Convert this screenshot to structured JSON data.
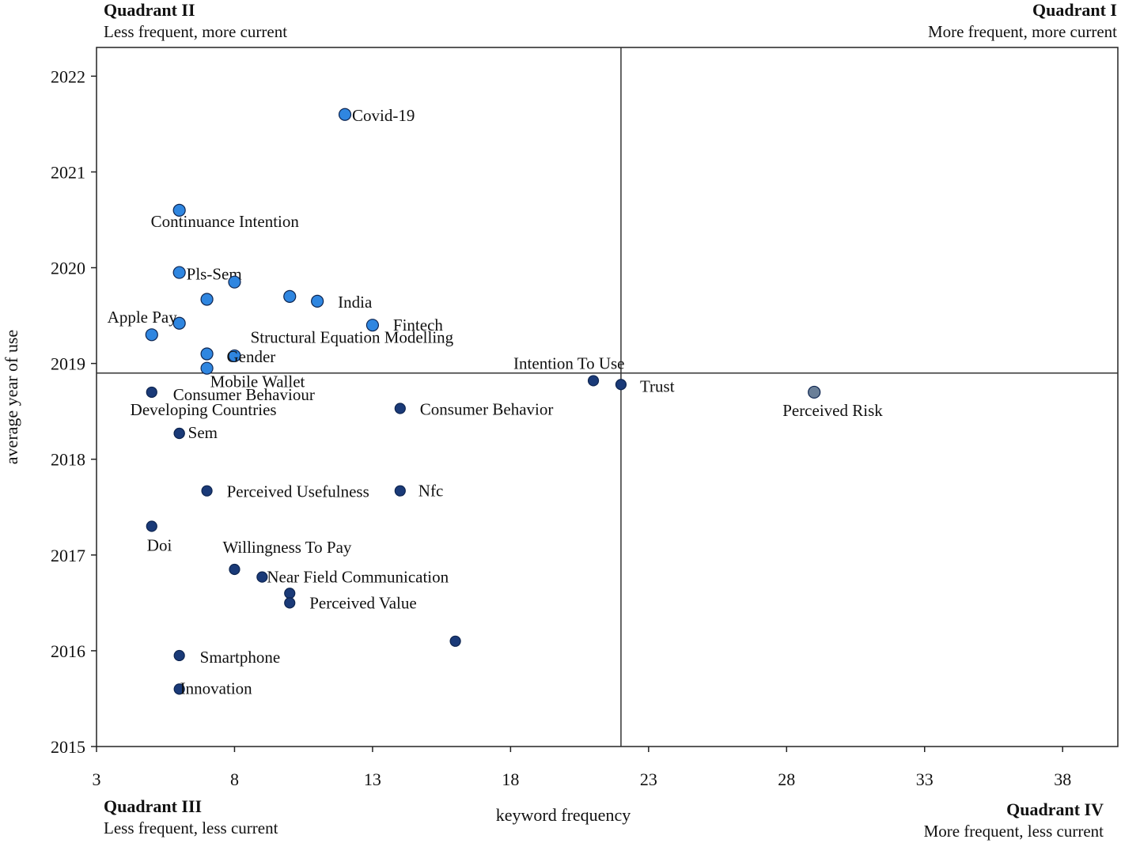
{
  "quadrants": {
    "q1": {
      "title": "Quadrant I",
      "subtitle": "More frequent, more current"
    },
    "q2": {
      "title": "Quadrant II",
      "subtitle": "Less frequent, more current"
    },
    "q3": {
      "title": "Quadrant III",
      "subtitle": "Less frequent, less current"
    },
    "q4": {
      "title": "Quadrant IV",
      "subtitle": "More frequent, less current"
    }
  },
  "chart_data": {
    "type": "scatter",
    "title": "",
    "xlabel": "keyword frequency",
    "ylabel": "average year of use",
    "xlim": [
      3,
      40
    ],
    "ylim": [
      2015,
      2022.3
    ],
    "xticks": [
      3,
      8,
      13,
      18,
      23,
      28,
      33,
      38
    ],
    "yticks": [
      2015,
      2016,
      2017,
      2018,
      2019,
      2020,
      2021,
      2022
    ],
    "reference_lines": {
      "x": 22,
      "y": 2018.9
    },
    "colors": {
      "current": "#2f86e0",
      "less_current": "#1a3a78",
      "highlight": "#6a7f98"
    },
    "points": [
      {
        "label": "Covid-19",
        "x": 12,
        "y": 2021.6,
        "group": "current"
      },
      {
        "label": "Continuance Intention",
        "x": 6,
        "y": 2020.6,
        "group": "current"
      },
      {
        "label": "Pls-Sem",
        "x": 6,
        "y": 2019.95,
        "group": "current"
      },
      {
        "label": "",
        "x": 8,
        "y": 2019.85,
        "group": "current"
      },
      {
        "label": "",
        "x": 7,
        "y": 2019.67,
        "group": "current"
      },
      {
        "label": "",
        "x": 10,
        "y": 2019.7,
        "group": "current"
      },
      {
        "label": "India",
        "x": 11,
        "y": 2019.65,
        "group": "current"
      },
      {
        "label": "Apple Pay",
        "x": 6,
        "y": 2019.42,
        "group": "current"
      },
      {
        "label": "",
        "x": 5,
        "y": 2019.3,
        "group": "current"
      },
      {
        "label": "Fintech",
        "x": 13,
        "y": 2019.4,
        "group": "current"
      },
      {
        "label": "Structural Equation  Modelling",
        "x": 7,
        "y": 2019.1,
        "group": "current"
      },
      {
        "label": "Gender",
        "x": 8,
        "y": 2019.08,
        "group": "current"
      },
      {
        "label": "Mobile  Wallet",
        "x": 7,
        "y": 2018.95,
        "group": "current"
      },
      {
        "label": "Consumer Behaviour",
        "x": 5,
        "y": 2018.7,
        "group": "less_current"
      },
      {
        "label": "Developing  Countries",
        "x": 6,
        "y": 2018.27,
        "group": "less_current"
      },
      {
        "label": "Sem",
        "x": 6,
        "y": 2018.27,
        "group": "less_current"
      },
      {
        "label": "Consumer Behavior",
        "x": 14,
        "y": 2018.53,
        "group": "less_current"
      },
      {
        "label": "Intention To Use",
        "x": 21,
        "y": 2018.82,
        "group": "less_current"
      },
      {
        "label": "Trust",
        "x": 22,
        "y": 2018.78,
        "group": "less_current"
      },
      {
        "label": "Perceived Risk",
        "x": 29,
        "y": 2018.7,
        "group": "highlight"
      },
      {
        "label": "Perceived Usefulness",
        "x": 7,
        "y": 2017.67,
        "group": "less_current"
      },
      {
        "label": "Nfc",
        "x": 14,
        "y": 2017.67,
        "group": "less_current"
      },
      {
        "label": "Doi",
        "x": 5,
        "y": 2017.3,
        "group": "less_current"
      },
      {
        "label": "Willingness  To Pay",
        "x": 8,
        "y": 2016.85,
        "group": "less_current"
      },
      {
        "label": "Near Field Communication",
        "x": 9,
        "y": 2016.77,
        "group": "less_current"
      },
      {
        "label": "",
        "x": 10,
        "y": 2016.6,
        "group": "less_current"
      },
      {
        "label": "Perceived Value",
        "x": 10,
        "y": 2016.5,
        "group": "less_current"
      },
      {
        "label": "",
        "x": 16,
        "y": 2016.1,
        "group": "less_current"
      },
      {
        "label": "Smartphone",
        "x": 6,
        "y": 2015.95,
        "group": "less_current"
      },
      {
        "label": "Innovation",
        "x": 6,
        "y": 2015.6,
        "group": "less_current"
      }
    ]
  }
}
